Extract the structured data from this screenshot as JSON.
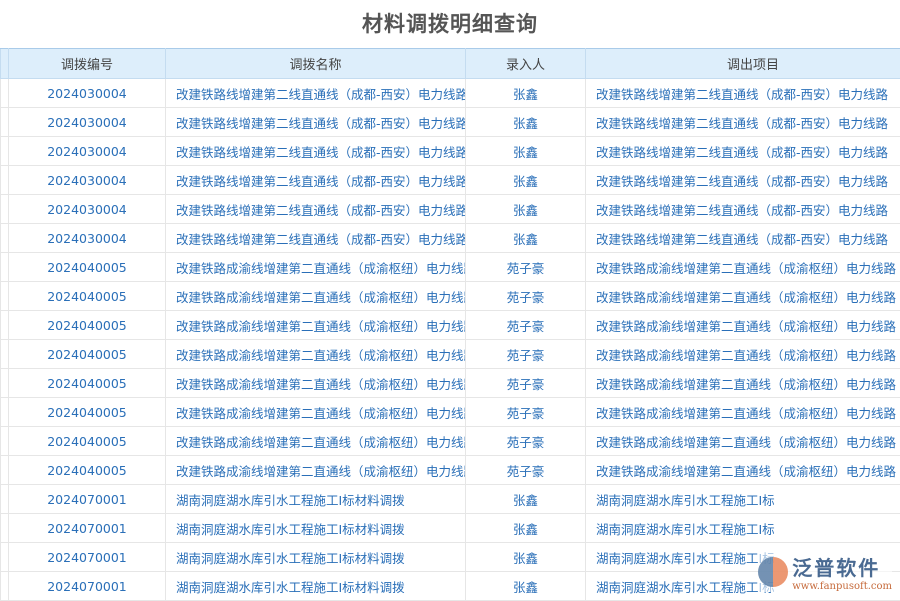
{
  "title": "材料调拨明细查询",
  "columns": [
    "调拨编号",
    "调拨名称",
    "录入人",
    "调出项目"
  ],
  "rows": [
    [
      "2024030004",
      "改建铁路线增建第二线直通线（成都-西安）电力线路",
      "张鑫",
      "改建铁路线增建第二线直通线（成都-西安）电力线路"
    ],
    [
      "2024030004",
      "改建铁路线增建第二线直通线（成都-西安）电力线路",
      "张鑫",
      "改建铁路线增建第二线直通线（成都-西安）电力线路"
    ],
    [
      "2024030004",
      "改建铁路线增建第二线直通线（成都-西安）电力线路",
      "张鑫",
      "改建铁路线增建第二线直通线（成都-西安）电力线路"
    ],
    [
      "2024030004",
      "改建铁路线增建第二线直通线（成都-西安）电力线路",
      "张鑫",
      "改建铁路线增建第二线直通线（成都-西安）电力线路"
    ],
    [
      "2024030004",
      "改建铁路线增建第二线直通线（成都-西安）电力线路",
      "张鑫",
      "改建铁路线增建第二线直通线（成都-西安）电力线路"
    ],
    [
      "2024030004",
      "改建铁路线增建第二线直通线（成都-西安）电力线路",
      "张鑫",
      "改建铁路线增建第二线直通线（成都-西安）电力线路"
    ],
    [
      "2024040005",
      "改建铁路成渝线增建第二直通线（成渝枢纽）电力线路",
      "苑子豪",
      "改建铁路成渝线增建第二直通线（成渝枢纽）电力线路"
    ],
    [
      "2024040005",
      "改建铁路成渝线增建第二直通线（成渝枢纽）电力线路",
      "苑子豪",
      "改建铁路成渝线增建第二直通线（成渝枢纽）电力线路"
    ],
    [
      "2024040005",
      "改建铁路成渝线增建第二直通线（成渝枢纽）电力线路",
      "苑子豪",
      "改建铁路成渝线增建第二直通线（成渝枢纽）电力线路"
    ],
    [
      "2024040005",
      "改建铁路成渝线增建第二直通线（成渝枢纽）电力线路",
      "苑子豪",
      "改建铁路成渝线增建第二直通线（成渝枢纽）电力线路"
    ],
    [
      "2024040005",
      "改建铁路成渝线增建第二直通线（成渝枢纽）电力线路",
      "苑子豪",
      "改建铁路成渝线增建第二直通线（成渝枢纽）电力线路"
    ],
    [
      "2024040005",
      "改建铁路成渝线增建第二直通线（成渝枢纽）电力线路",
      "苑子豪",
      "改建铁路成渝线增建第二直通线（成渝枢纽）电力线路"
    ],
    [
      "2024040005",
      "改建铁路成渝线增建第二直通线（成渝枢纽）电力线路",
      "苑子豪",
      "改建铁路成渝线增建第二直通线（成渝枢纽）电力线路"
    ],
    [
      "2024040005",
      "改建铁路成渝线增建第二直通线（成渝枢纽）电力线路",
      "苑子豪",
      "改建铁路成渝线增建第二直通线（成渝枢纽）电力线路"
    ],
    [
      "2024070001",
      "湖南洞庭湖水库引水工程施工I标材料调拨",
      "张鑫",
      "湖南洞庭湖水库引水工程施工I标"
    ],
    [
      "2024070001",
      "湖南洞庭湖水库引水工程施工I标材料调拨",
      "张鑫",
      "湖南洞庭湖水库引水工程施工I标"
    ],
    [
      "2024070001",
      "湖南洞庭湖水库引水工程施工I标材料调拨",
      "张鑫",
      "湖南洞庭湖水库引水工程施工I标"
    ],
    [
      "2024070001",
      "湖南洞庭湖水库引水工程施工I标材料调拨",
      "张鑫",
      "湖南洞庭湖水库引水工程施工I标"
    ]
  ],
  "logo": {
    "name": "泛普软件",
    "url": "www.fanpusoft.com"
  }
}
